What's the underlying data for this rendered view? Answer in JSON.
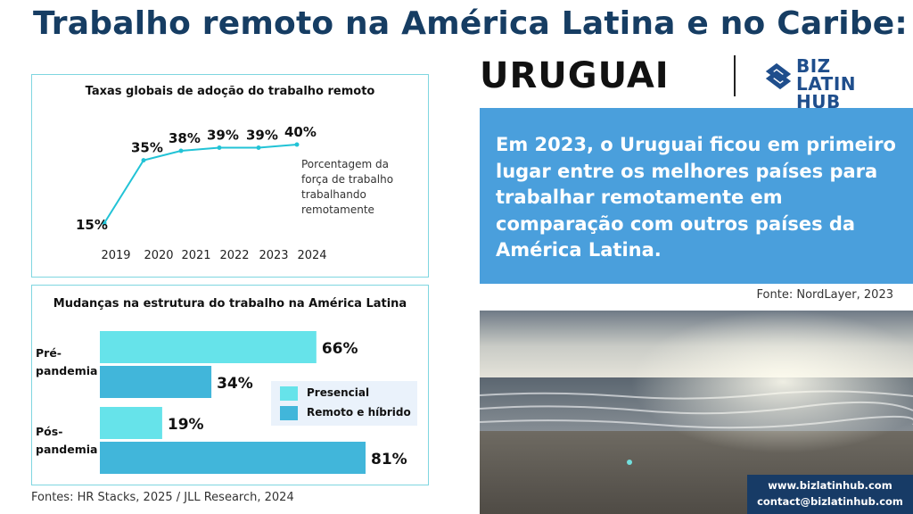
{
  "header": {
    "title": "Trabalho remoto na América Latina e no Caribe:",
    "country": "URUGUAI"
  },
  "logo": {
    "line1": "BIZ LATIN",
    "line2": "HUB",
    "icon": "bizlatinhub-logo-icon"
  },
  "colors": {
    "title": "#163d63",
    "line": "#22c3d6",
    "presencial": "#66e3ea",
    "remoto": "#41b6da",
    "blue_box": "#4a9fdc",
    "contact_box": "#173b66"
  },
  "chart1": {
    "title": "Taxas globais de adoção do trabalho remoto",
    "note_lines": [
      "Porcentagem da",
      "força de trabalho",
      "trabalhando",
      "remotamente"
    ]
  },
  "chart2": {
    "title": "Mudanças na estrutura do trabalho na América Latina",
    "group_labels": [
      [
        "Pré-",
        "pandemia"
      ],
      [
        "Pós-",
        "pandemia"
      ]
    ]
  },
  "chart_data": [
    {
      "type": "line",
      "title": "Taxas globais de adoção do trabalho remoto",
      "x": [
        "2019",
        "2020",
        "2021",
        "2022",
        "2023",
        "2024"
      ],
      "values": [
        15,
        35,
        38,
        39,
        39,
        40
      ],
      "data_labels": [
        "15%",
        "35%",
        "38%",
        "39%",
        "39%",
        "40%"
      ],
      "legend": "none",
      "grid": false
    },
    {
      "type": "bar",
      "orientation": "horizontal",
      "title": "Mudanças na estrutura do trabalho na América Latina",
      "categories": [
        "Pré-pandemia",
        "Pós-pandemia"
      ],
      "series": [
        {
          "name": "Presencial",
          "values": [
            66,
            19
          ],
          "labels": [
            "66%",
            "19%"
          ]
        },
        {
          "name": "Remoto e híbrido",
          "values": [
            34,
            81
          ],
          "labels": [
            "34%",
            "81%"
          ]
        }
      ],
      "xlim": [
        0,
        81
      ],
      "legend": "right"
    }
  ],
  "info_box": {
    "text": "Em 2023, o Uruguai ficou em primeiro lugar entre os melhores países para trabalhar remotamente em comparação com outros países da América Latina."
  },
  "source_right": "Fonte: NordLayer, 2023",
  "sources_left": "Fontes: HR Stacks, 2025 / JLL Research, 2024",
  "contact": {
    "website": "www.bizlatinhub.com",
    "email": "contact@bizlatinhub.com"
  }
}
